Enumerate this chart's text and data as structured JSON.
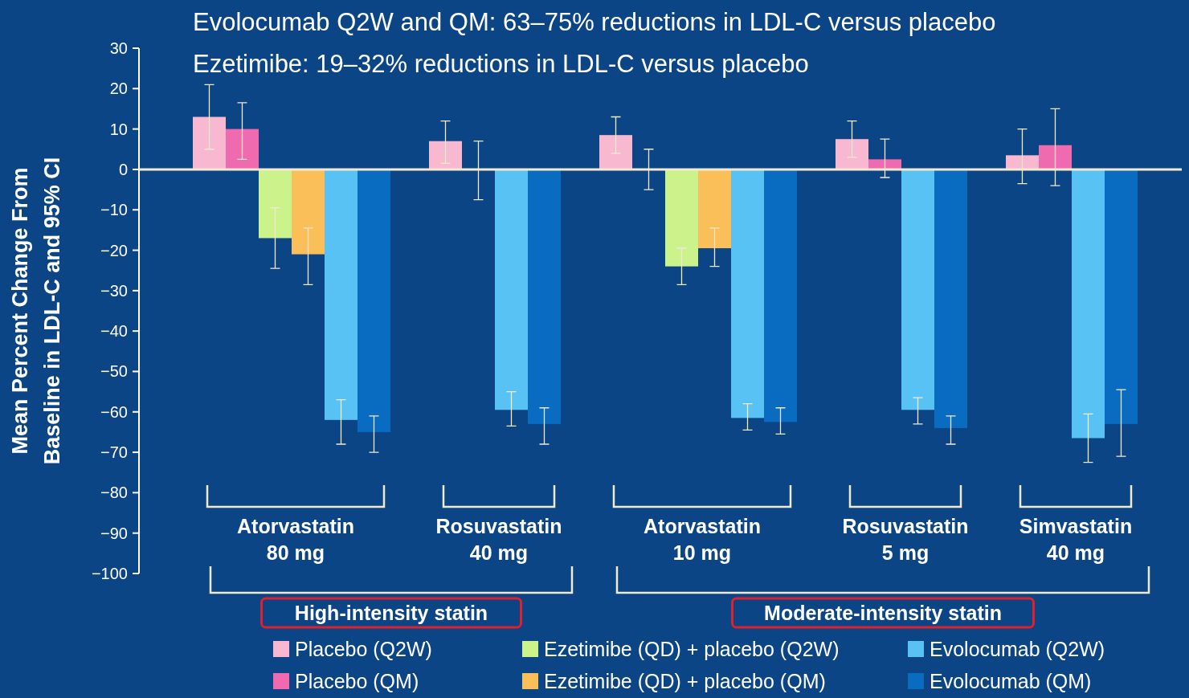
{
  "chart_data": {
    "type": "bar",
    "title": "Evolocumab Q2W and QM: 63–75% reductions in LDL-C versus placebo",
    "subtitle": "Ezetimibe: 19–32% reductions in LDL-C versus placebo",
    "ylabel": "Mean Percent Change From Baseline in LDL-C and 95% CI",
    "categories": [
      "Atorvastatin\n80 mg",
      "Rosuvastatin\n40 mg",
      "Atorvastatin\n10 mg",
      "Rosuvastatin\n5 mg",
      "Simvastatin\n40 mg"
    ],
    "series": [
      {
        "name": "Placebo (Q2W)",
        "color": "#f7b8d0",
        "values": [
          13,
          7,
          8.5,
          7.5,
          3.5
        ],
        "errors": [
          [
            5,
            21
          ],
          [
            1.5,
            12
          ],
          [
            4,
            13
          ],
          [
            3,
            12
          ],
          [
            -3.5,
            10
          ]
        ]
      },
      {
        "name": "Placebo (QM)",
        "color": "#f06ab0",
        "values": [
          10,
          0,
          0,
          2.5,
          6
        ],
        "errors": [
          [
            2.5,
            16.5
          ],
          [
            -7.5,
            7
          ],
          [
            -5,
            5
          ],
          [
            -2,
            7.5
          ],
          [
            -4,
            15
          ]
        ]
      },
      {
        "name": "Ezetimibe (QD) + placebo (Q2W)",
        "color": "#ccf28c",
        "values": [
          -17,
          null,
          -24,
          null,
          null
        ],
        "errors": [
          [
            -24.5,
            -9.5
          ],
          null,
          [
            -28.5,
            -19.5
          ],
          null,
          null
        ]
      },
      {
        "name": "Ezetimibe (QD) + placebo (QM)",
        "color": "#fbbf5a",
        "values": [
          -21,
          null,
          -19.5,
          null,
          null
        ],
        "errors": [
          [
            -28.5,
            -14.5
          ],
          null,
          [
            -24,
            -14.5
          ],
          null,
          null
        ]
      },
      {
        "name": "Evolocumab (Q2W)",
        "color": "#58c2f5",
        "values": [
          -62,
          -59.5,
          -61.5,
          -59.5,
          -66.5
        ],
        "errors": [
          [
            -68,
            -57
          ],
          [
            -63.5,
            -55
          ],
          [
            -64.5,
            -58
          ],
          [
            -63,
            -56.5
          ],
          [
            -72.5,
            -60.5
          ]
        ]
      },
      {
        "name": "Evolocumab (QM)",
        "color": "#0a6cc0",
        "values": [
          -65,
          -63,
          -62.5,
          -64,
          -63
        ],
        "errors": [
          [
            -70,
            -61
          ],
          [
            -68,
            -59
          ],
          [
            -65.5,
            -59
          ],
          [
            -68,
            -61
          ],
          [
            -71,
            -54.5
          ]
        ]
      }
    ],
    "ylim": [
      -100,
      30
    ],
    "yticks": [
      -100,
      -90,
      -80,
      -70,
      -60,
      -50,
      -40,
      -30,
      -20,
      -10,
      0,
      10,
      20,
      30
    ],
    "annotations": [
      "High-intensity statin",
      "Moderate-intensity statin"
    ],
    "legend": "bottom"
  }
}
